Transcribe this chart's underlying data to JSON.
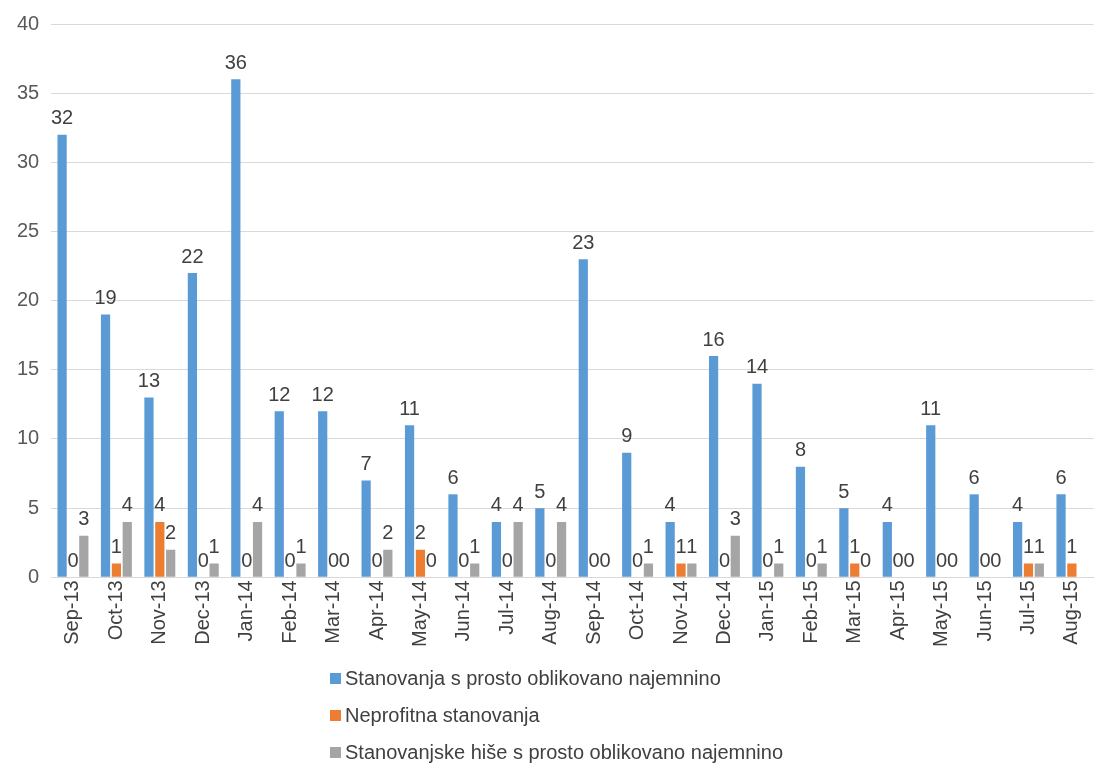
{
  "chart_data": {
    "type": "bar",
    "categories": [
      "Sep-13",
      "Oct-13",
      "Nov-13",
      "Dec-13",
      "Jan-14",
      "Feb-14",
      "Mar-14",
      "Apr-14",
      "May-14",
      "Jun-14",
      "Jul-14",
      "Aug-14",
      "Sep-14",
      "Oct-14",
      "Nov-14",
      "Dec-14",
      "Jan-15",
      "Feb-15",
      "Mar-15",
      "Apr-15",
      "May-15",
      "Jun-15",
      "Jul-15",
      "Aug-15"
    ],
    "series": [
      {
        "name": "Stanovanja s prosto oblikovano najemnino",
        "color": "#5b9bd5",
        "values": [
          32,
          19,
          13,
          22,
          36,
          12,
          12,
          7,
          11,
          6,
          4,
          5,
          23,
          9,
          4,
          16,
          14,
          8,
          5,
          4,
          11,
          6,
          4,
          6
        ]
      },
      {
        "name": "Neprofitna stanovanja",
        "color": "#ed7d31",
        "values": [
          0,
          1,
          4,
          0,
          0,
          0,
          0,
          0,
          2,
          0,
          0,
          0,
          0,
          0,
          1,
          0,
          0,
          0,
          1,
          0,
          0,
          0,
          1,
          1
        ]
      },
      {
        "name": "Stanovanjske hiše s prosto oblikovano najemnino",
        "color": "#a5a5a5",
        "values": [
          3,
          4,
          2,
          1,
          4,
          1,
          0,
          2,
          0,
          1,
          4,
          4,
          0,
          1,
          1,
          3,
          1,
          1,
          0,
          0,
          0,
          0,
          1,
          null
        ]
      }
    ],
    "ylim": [
      0,
      40
    ],
    "yticks": [
      0,
      5,
      10,
      15,
      20,
      25,
      30,
      35,
      40
    ],
    "grid": "y",
    "legend": "bottom",
    "data_labels": true
  }
}
